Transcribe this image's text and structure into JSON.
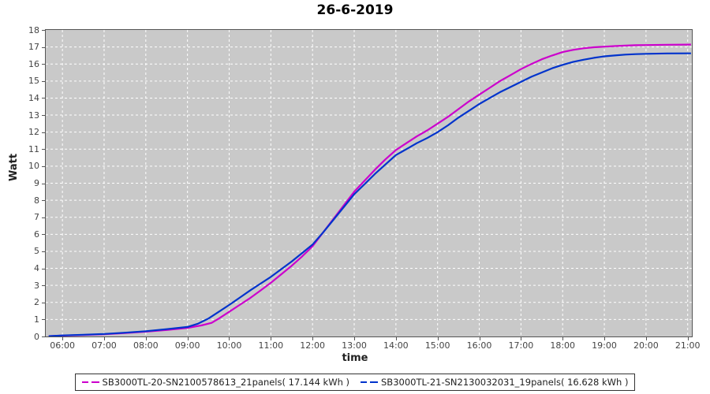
{
  "title": "26-6-2019",
  "chart_data": {
    "type": "line",
    "title": "26-6-2019",
    "xlabel": "time",
    "ylabel": "Watt",
    "xlim": [
      5.6,
      21.1
    ],
    "ylim": [
      0,
      18
    ],
    "grid": true,
    "plot_background": "#c9c9c9",
    "gridline_color": "#ffffff",
    "legend_position": "bottom",
    "y_ticks": [
      0,
      1,
      2,
      3,
      4,
      5,
      6,
      7,
      8,
      9,
      10,
      11,
      12,
      13,
      14,
      15,
      16,
      17,
      18
    ],
    "x_ticks": [
      {
        "h": 6,
        "label": "06:00"
      },
      {
        "h": 7,
        "label": "07:00"
      },
      {
        "h": 8,
        "label": "08:00"
      },
      {
        "h": 9,
        "label": "09:00"
      },
      {
        "h": 10,
        "label": "10:00"
      },
      {
        "h": 11,
        "label": "11:00"
      },
      {
        "h": 12,
        "label": "12:00"
      },
      {
        "h": 13,
        "label": "13:00"
      },
      {
        "h": 14,
        "label": "14:00"
      },
      {
        "h": 15,
        "label": "15:00"
      },
      {
        "h": 16,
        "label": "16:00"
      },
      {
        "h": 17,
        "label": "17:00"
      },
      {
        "h": 18,
        "label": "18:00"
      },
      {
        "h": 19,
        "label": "19:00"
      },
      {
        "h": 20,
        "label": "20:00"
      },
      {
        "h": 21,
        "label": "21:00"
      }
    ],
    "series": [
      {
        "name": "SB3000TL-20-SN2100578613_21panels( 17.144 kWh )",
        "color": "#cc00cc",
        "total_kwh": 17.144,
        "points": [
          [
            5.67,
            0.02
          ],
          [
            6,
            0.05
          ],
          [
            6.25,
            0.07
          ],
          [
            6.5,
            0.09
          ],
          [
            7,
            0.13
          ],
          [
            7.5,
            0.2
          ],
          [
            8,
            0.28
          ],
          [
            8.5,
            0.38
          ],
          [
            9,
            0.5
          ],
          [
            9.33,
            0.65
          ],
          [
            9.58,
            0.8
          ],
          [
            9.75,
            1.05
          ],
          [
            10,
            1.45
          ],
          [
            10.25,
            1.85
          ],
          [
            10.5,
            2.25
          ],
          [
            10.75,
            2.7
          ],
          [
            11,
            3.15
          ],
          [
            11.25,
            3.65
          ],
          [
            11.5,
            4.15
          ],
          [
            11.75,
            4.7
          ],
          [
            12,
            5.3
          ],
          [
            12.25,
            6.1
          ],
          [
            12.5,
            6.9
          ],
          [
            12.75,
            7.7
          ],
          [
            13,
            8.5
          ],
          [
            13.25,
            9.15
          ],
          [
            13.5,
            9.8
          ],
          [
            13.75,
            10.4
          ],
          [
            14,
            10.95
          ],
          [
            14.25,
            11.35
          ],
          [
            14.5,
            11.75
          ],
          [
            14.75,
            12.1
          ],
          [
            15,
            12.5
          ],
          [
            15.25,
            12.9
          ],
          [
            15.5,
            13.35
          ],
          [
            15.75,
            13.8
          ],
          [
            16,
            14.2
          ],
          [
            16.25,
            14.6
          ],
          [
            16.5,
            15.0
          ],
          [
            16.75,
            15.35
          ],
          [
            17,
            15.7
          ],
          [
            17.25,
            16.0
          ],
          [
            17.5,
            16.28
          ],
          [
            17.75,
            16.5
          ],
          [
            18,
            16.7
          ],
          [
            18.25,
            16.83
          ],
          [
            18.5,
            16.92
          ],
          [
            18.75,
            16.98
          ],
          [
            19,
            17.02
          ],
          [
            19.25,
            17.05
          ],
          [
            19.5,
            17.08
          ],
          [
            19.75,
            17.1
          ],
          [
            20,
            17.11
          ],
          [
            20.5,
            17.13
          ],
          [
            21,
            17.14
          ],
          [
            21.08,
            17.144
          ]
        ]
      },
      {
        "name": "SB3000TL-21-SN2130032031_19panels( 16.628 kWh )",
        "color": "#0033cc",
        "total_kwh": 16.628,
        "points": [
          [
            5.67,
            0.02
          ],
          [
            6,
            0.06
          ],
          [
            6.5,
            0.1
          ],
          [
            7,
            0.15
          ],
          [
            7.5,
            0.22
          ],
          [
            8,
            0.31
          ],
          [
            8.5,
            0.43
          ],
          [
            9,
            0.56
          ],
          [
            9.25,
            0.75
          ],
          [
            9.5,
            1.05
          ],
          [
            9.75,
            1.45
          ],
          [
            10,
            1.85
          ],
          [
            10.25,
            2.27
          ],
          [
            10.5,
            2.7
          ],
          [
            10.75,
            3.1
          ],
          [
            11,
            3.5
          ],
          [
            11.25,
            3.95
          ],
          [
            11.5,
            4.4
          ],
          [
            11.75,
            4.9
          ],
          [
            12,
            5.4
          ],
          [
            12.25,
            6.1
          ],
          [
            12.5,
            6.85
          ],
          [
            12.75,
            7.6
          ],
          [
            13,
            8.35
          ],
          [
            13.25,
            8.95
          ],
          [
            13.5,
            9.55
          ],
          [
            13.75,
            10.1
          ],
          [
            14,
            10.65
          ],
          [
            14.25,
            11.0
          ],
          [
            14.5,
            11.35
          ],
          [
            14.75,
            11.65
          ],
          [
            15,
            12.0
          ],
          [
            15.25,
            12.4
          ],
          [
            15.5,
            12.85
          ],
          [
            15.75,
            13.25
          ],
          [
            16,
            13.65
          ],
          [
            16.25,
            14.0
          ],
          [
            16.5,
            14.35
          ],
          [
            16.75,
            14.65
          ],
          [
            17,
            14.95
          ],
          [
            17.25,
            15.25
          ],
          [
            17.5,
            15.5
          ],
          [
            17.75,
            15.75
          ],
          [
            18,
            15.95
          ],
          [
            18.25,
            16.12
          ],
          [
            18.5,
            16.25
          ],
          [
            18.75,
            16.36
          ],
          [
            19,
            16.45
          ],
          [
            19.25,
            16.5
          ],
          [
            19.5,
            16.55
          ],
          [
            19.75,
            16.58
          ],
          [
            20,
            16.6
          ],
          [
            20.5,
            16.62
          ],
          [
            21,
            16.626
          ],
          [
            21.08,
            16.628
          ]
        ]
      }
    ]
  }
}
